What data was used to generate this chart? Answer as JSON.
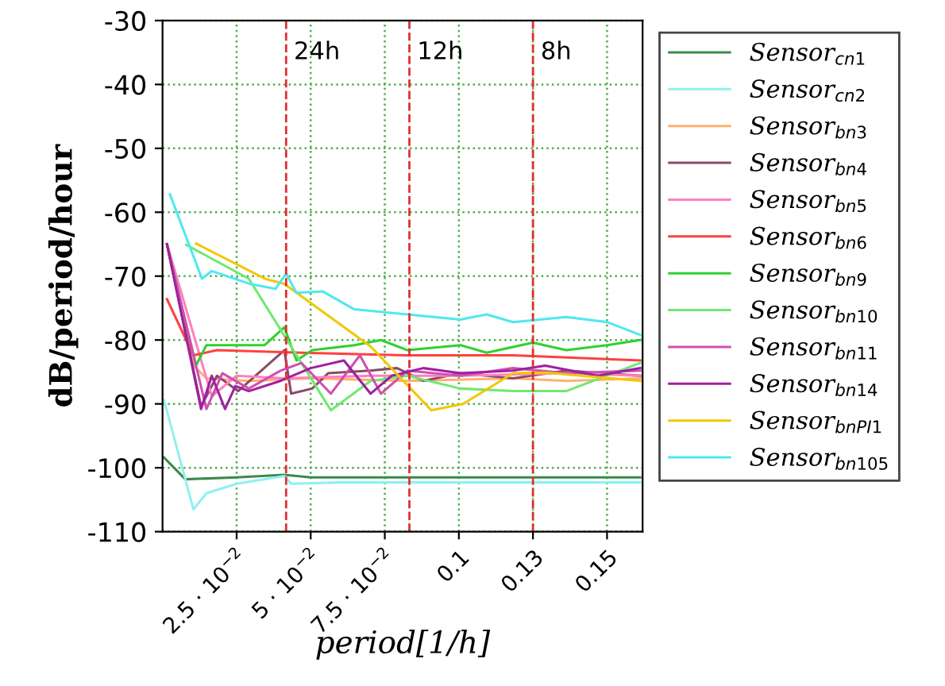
{
  "chart_data": {
    "type": "line",
    "xlabel": "period[1/h]",
    "ylabel": "dB/period/hour",
    "xlim": [
      0,
      0.162
    ],
    "ylim": [
      -110,
      -30
    ],
    "xticks": [
      {
        "value": 0.025,
        "label": "2.5 · 10$^{−2}$"
      },
      {
        "value": 0.05,
        "label": "5 · 10$^{−2}$"
      },
      {
        "value": 0.075,
        "label": "7.5 · 10$^{−2}$"
      },
      0.1,
      {
        "value": 0.125,
        "label": "0.13"
      },
      0.15
    ],
    "yticks": [
      -30,
      -40,
      -50,
      -60,
      -70,
      -80,
      -90,
      -100,
      -110
    ],
    "grid": true,
    "legend": "right",
    "line_style": "solid",
    "marker": "none",
    "ref_lines": [
      {
        "axis": "x",
        "value": 0.0417,
        "label": "24h",
        "color": "#e03030",
        "line_style": "dashed"
      },
      {
        "axis": "x",
        "value": 0.0833,
        "label": "12h",
        "color": "#e03030",
        "line_style": "dashed"
      },
      {
        "axis": "x",
        "value": 0.125,
        "label": "8h",
        "color": "#e03030",
        "line_style": "dashed"
      }
    ],
    "series": [
      {
        "name": "Sensor$_{cn1}$",
        "color": "#3a8a4a",
        "x": [
          0.0005,
          0.0077,
          0.025,
          0.0411,
          0.05,
          0.1,
          0.15,
          0.1612
        ],
        "values": [
          -98.4,
          -101.8,
          -101.5,
          -101.1,
          -101.5,
          -101.5,
          -101.5,
          -101.5
        ]
      },
      {
        "name": "Sensor$_{cn2}$",
        "color": "#90f0f0",
        "x": [
          0.0005,
          0.0104,
          0.0148,
          0.025,
          0.0411,
          0.0434,
          0.06,
          0.1,
          0.15,
          0.1612
        ],
        "values": [
          -89.4,
          -106.5,
          -104.0,
          -102.5,
          -101.3,
          -102.5,
          -102.3,
          -102.3,
          -102.3,
          -102.3
        ]
      },
      {
        "name": "Sensor$_{bn3}$",
        "color": "#ffb070",
        "x": [
          0.0015,
          0.0104,
          0.0148,
          0.0291,
          0.05,
          0.0826,
          0.1183,
          0.1362,
          0.1612
        ],
        "values": [
          -65.0,
          -84.0,
          -86.0,
          -86.4,
          -86.0,
          -86.4,
          -86.0,
          -86.4,
          -86.0
        ]
      },
      {
        "name": "Sensor$_{bn4}$",
        "color": "#8a4a6a",
        "x": [
          0.0015,
          0.013,
          0.0184,
          0.0255,
          0.0411,
          0.0434,
          0.0505,
          0.0559,
          0.0702,
          0.0791,
          0.088,
          0.1005,
          0.1183,
          0.1362,
          0.1612
        ],
        "values": [
          -65.0,
          -90.4,
          -85.6,
          -88.0,
          -81.6,
          -88.4,
          -87.6,
          -85.2,
          -84.8,
          -84.4,
          -86.4,
          -85.2,
          -86.0,
          -84.8,
          -85.6
        ]
      },
      {
        "name": "Sensor$_{bn5}$",
        "color": "#ff80c0",
        "x": [
          0.0015,
          0.0166,
          0.025,
          0.0411,
          0.0702,
          0.1005,
          0.1362,
          0.1612
        ],
        "values": [
          -65.0,
          -88.8,
          -85.6,
          -86.0,
          -85.6,
          -85.6,
          -85.2,
          -85.6
        ]
      },
      {
        "name": "Sensor$_{bn6}$",
        "color": "#ff4040",
        "x": [
          0.0015,
          0.0104,
          0.0184,
          0.0469,
          0.0826,
          0.1183,
          0.1612
        ],
        "values": [
          -73.6,
          -82.4,
          -81.6,
          -82.0,
          -82.4,
          -82.4,
          -83.2
        ]
      },
      {
        "name": "Sensor$_{bn9}$",
        "color": "#30d030",
        "x": [
          0.0015,
          0.0113,
          0.0148,
          0.025,
          0.0345,
          0.0411,
          0.0452,
          0.0505,
          0.0648,
          0.0737,
          0.0826,
          0.1005,
          0.1094,
          0.125,
          0.1362,
          0.15,
          0.1612
        ],
        "values": [
          -65.0,
          -84.0,
          -80.8,
          -80.8,
          -80.8,
          -78.0,
          -83.2,
          -81.6,
          -80.8,
          -80.0,
          -81.6,
          -80.8,
          -82.0,
          -80.4,
          -81.6,
          -80.8,
          -80.0
        ]
      },
      {
        "name": "Sensor$_{bn10}$",
        "color": "#70e870",
        "x": [
          0.008,
          0.0291,
          0.0568,
          0.0702,
          0.0826,
          0.1005,
          0.1183,
          0.1362,
          0.1612
        ],
        "values": [
          -65.1,
          -70.4,
          -91.0,
          -86.4,
          -85.6,
          -87.6,
          -88.0,
          -88.0,
          -83.6
        ]
      },
      {
        "name": "Sensor$_{bn11}$",
        "color": "#d050b0",
        "x": [
          0.0015,
          0.0148,
          0.0202,
          0.0291,
          0.0398,
          0.0469,
          0.0568,
          0.0666,
          0.0737,
          0.0826,
          0.1005,
          0.1183,
          0.1362,
          0.1612
        ],
        "values": [
          -65.0,
          -90.8,
          -85.2,
          -87.6,
          -84.8,
          -83.6,
          -88.4,
          -82.4,
          -88.4,
          -84.8,
          -85.6,
          -84.4,
          -85.2,
          -84.8
        ]
      },
      {
        "name": "Sensor$_{bn14}$",
        "color": "#a020a0",
        "x": [
          0.0015,
          0.013,
          0.0166,
          0.0211,
          0.0246,
          0.0291,
          0.0398,
          0.05,
          0.0612,
          0.0702,
          0.0773,
          0.088,
          0.1005,
          0.1183,
          0.1291,
          0.1469,
          0.1612
        ],
        "values": [
          -65.0,
          -90.8,
          -85.6,
          -90.8,
          -87.2,
          -88.0,
          -86.4,
          -84.4,
          -83.2,
          -88.4,
          -85.6,
          -84.4,
          -85.2,
          -84.8,
          -84.0,
          -85.6,
          -84.4
        ]
      },
      {
        "name": "Sensor$_{bnPI1}$",
        "color": "#f0c800",
        "x": [
          0.0113,
          0.0345,
          0.0411,
          0.0702,
          0.0907,
          0.1014,
          0.1183,
          0.1291,
          0.1612
        ],
        "values": [
          -64.9,
          -70.4,
          -71.2,
          -81.0,
          -91.0,
          -90.0,
          -85.2,
          -85.1,
          -86.4
        ]
      },
      {
        "name": "Sensor$_{bn105}$",
        "color": "#50e8f0",
        "x": [
          0.0025,
          0.0133,
          0.0166,
          0.0293,
          0.0381,
          0.0417,
          0.0452,
          0.0541,
          0.0647,
          0.0826,
          0.1005,
          0.1094,
          0.1183,
          0.1362,
          0.15,
          0.1612
        ],
        "values": [
          -57.2,
          -70.4,
          -69.2,
          -71.2,
          -72.0,
          -69.6,
          -72.6,
          -72.4,
          -75.2,
          -76.0,
          -76.8,
          -76.0,
          -77.2,
          -76.4,
          -77.2,
          -79.2
        ]
      }
    ]
  }
}
